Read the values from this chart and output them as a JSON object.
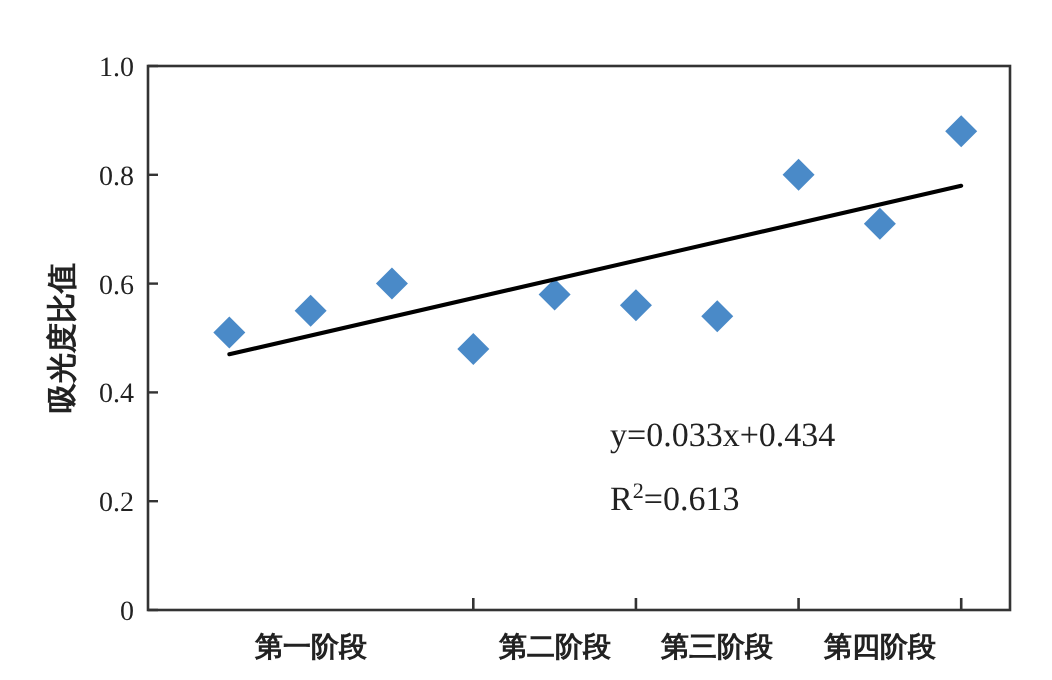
{
  "chart_data": {
    "type": "scatter",
    "ylabel": "吸光度比值",
    "categories": [
      null,
      "第一阶段",
      null,
      null,
      "第二阶段",
      null,
      "第三阶段",
      null,
      "第四阶段",
      null
    ],
    "series": [
      {
        "type": "scatter",
        "color": "#4a8ac8",
        "marker": "diamond",
        "values": [
          0.51,
          0.55,
          0.6,
          0.48,
          0.58,
          0.56,
          0.54,
          0.8,
          0.71,
          0.88
        ]
      },
      {
        "type": "line",
        "color": "#000000",
        "marker": "none",
        "line_style": "solid",
        "values": [
          0.47,
          null,
          null,
          null,
          null,
          null,
          null,
          null,
          null,
          0.78
        ]
      }
    ],
    "ylim": [
      0,
      1
    ],
    "yticks": [
      0,
      0.2,
      0.4,
      0.6,
      0.8,
      {
        "value": 1,
        "label": "1.0"
      }
    ],
    "annotations": [
      "y=0.033x+0.434",
      "R$^{2}$=0.613"
    ]
  }
}
